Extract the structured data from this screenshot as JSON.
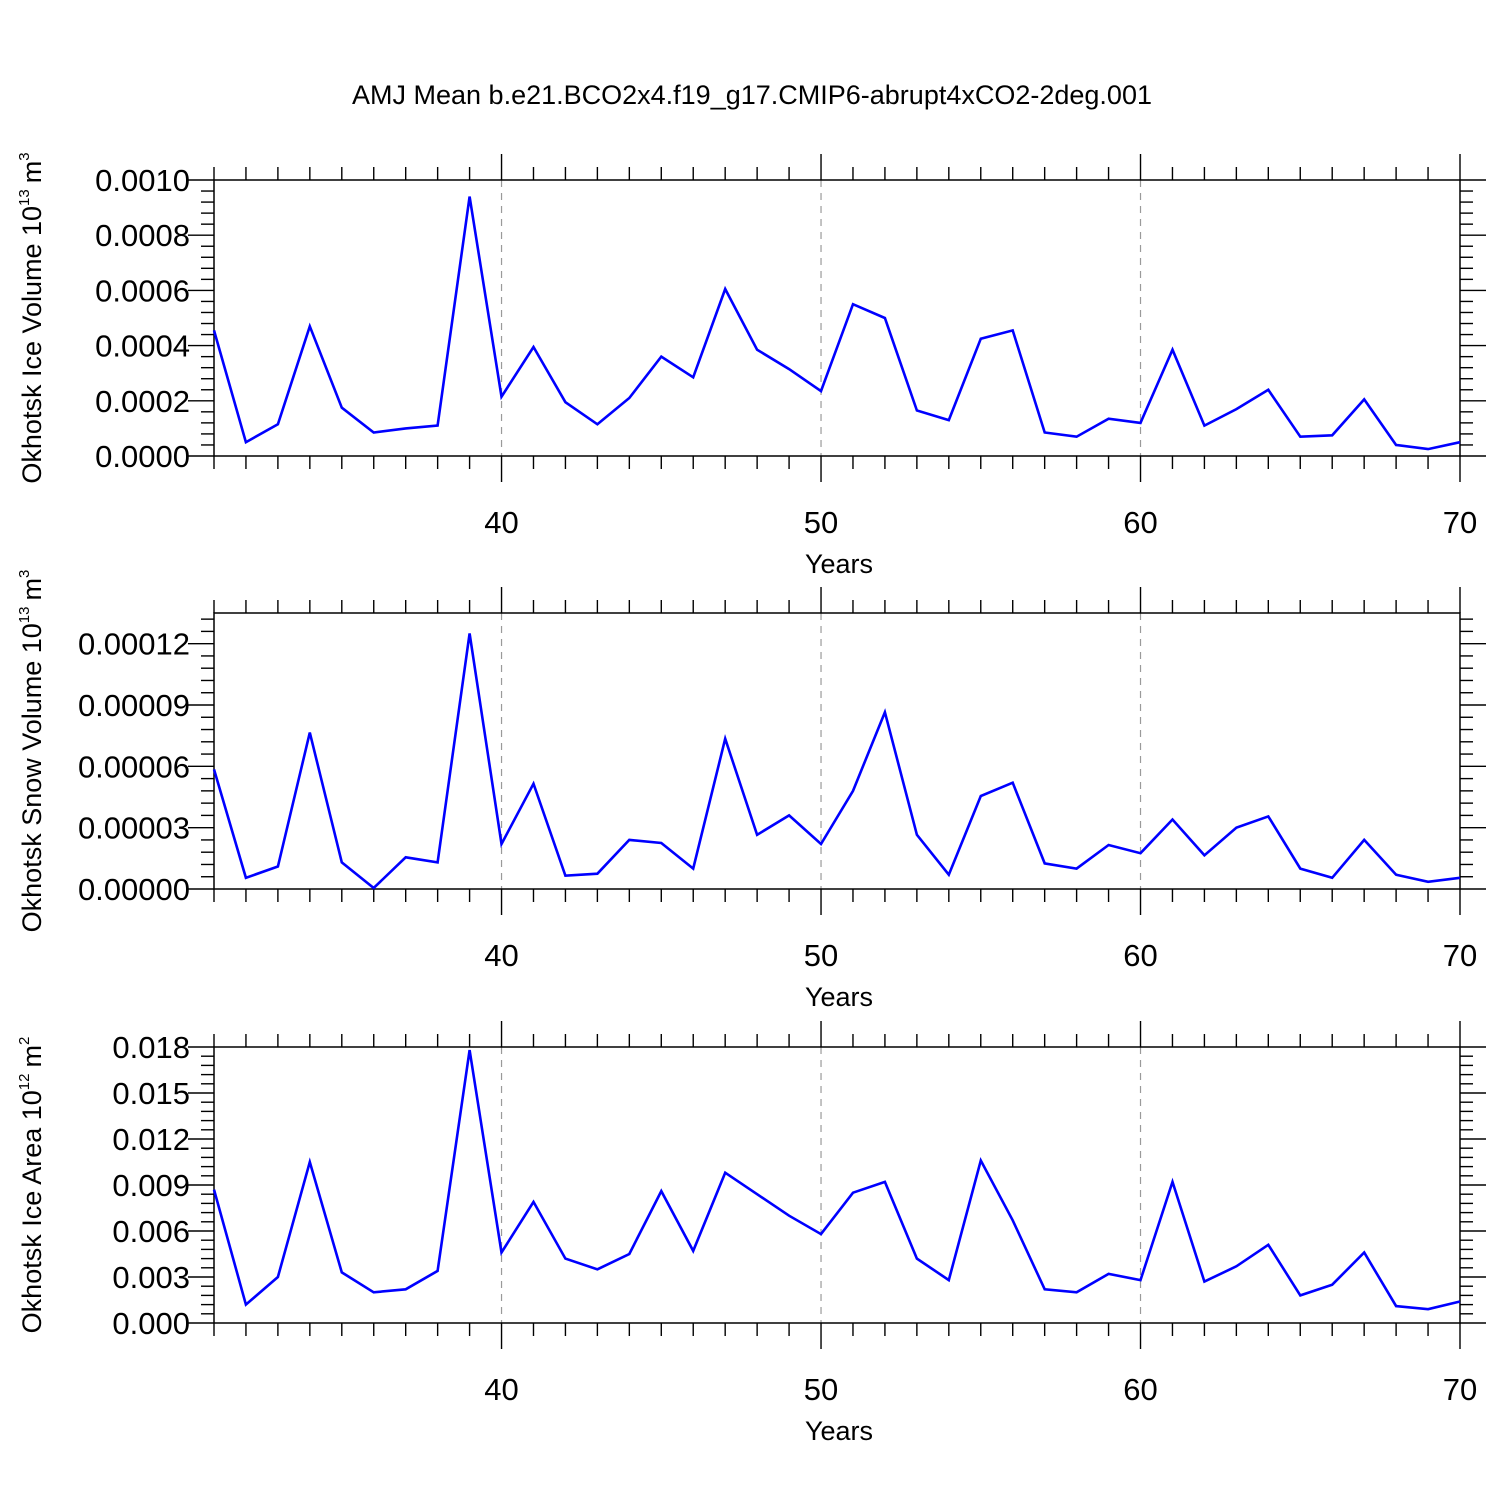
{
  "title": "AMJ Mean b.e21.BCO2x4.f19_g17.CMIP6-abrupt4xCO2-2deg.001",
  "colors": {
    "line": "#0000ff",
    "axis": "#000000",
    "grid": "#9a9a9a"
  },
  "chart_data": [
    {
      "type": "line",
      "xlabel": "Years",
      "ylabel": {
        "text": "Okhotsk Ice Volume 10",
        "exp": "13",
        "unit": "m",
        "unit_exp": "3"
      },
      "xlim": [
        31,
        70
      ],
      "ylim": [
        0,
        0.001
      ],
      "xticks": [
        40,
        50,
        60,
        70
      ],
      "yticks": [
        0,
        0.0002,
        0.0004,
        0.0006,
        0.0008,
        0.001
      ],
      "ytick_labels": [
        "0.0000",
        "0.0002",
        "0.0004",
        "0.0006",
        "0.0008",
        "0.0010"
      ],
      "x": [
        31,
        32,
        33,
        34,
        35,
        36,
        37,
        38,
        39,
        40,
        41,
        42,
        43,
        44,
        45,
        46,
        47,
        48,
        49,
        50,
        51,
        52,
        53,
        54,
        55,
        56,
        57,
        58,
        59,
        60,
        61,
        62,
        63,
        64,
        65,
        66,
        67,
        68,
        69,
        70
      ],
      "y": [
        0.000455,
        5e-05,
        0.000115,
        0.00047,
        0.000175,
        8.5e-05,
        0.0001,
        0.00011,
        0.00094,
        0.000215,
        0.000395,
        0.000195,
        0.000115,
        0.00021,
        0.00036,
        0.000285,
        0.000605,
        0.000385,
        0.000315,
        0.000235,
        0.00055,
        0.0005,
        0.000165,
        0.00013,
        0.000425,
        0.000455,
        8.5e-05,
        7e-05,
        0.000135,
        0.00012,
        0.000385,
        0.00011,
        0.00017,
        0.00024,
        7e-05,
        7.5e-05,
        0.000205,
        4e-05,
        2.5e-05,
        5e-05
      ]
    },
    {
      "type": "line",
      "xlabel": "Years",
      "ylabel": {
        "text": "Okhotsk Snow Volume 10",
        "exp": "13",
        "unit": "m",
        "unit_exp": "3"
      },
      "xlim": [
        31,
        70
      ],
      "ylim": [
        0,
        0.000135
      ],
      "xticks": [
        40,
        50,
        60,
        70
      ],
      "yticks": [
        0,
        3e-05,
        6e-05,
        9e-05,
        0.00012
      ],
      "ytick_labels": [
        "0.00000",
        "0.00003",
        "0.00006",
        "0.00009",
        "0.00012"
      ],
      "x": [
        31,
        32,
        33,
        34,
        35,
        36,
        37,
        38,
        39,
        40,
        41,
        42,
        43,
        44,
        45,
        46,
        47,
        48,
        49,
        50,
        51,
        52,
        53,
        54,
        55,
        56,
        57,
        58,
        59,
        60,
        61,
        62,
        63,
        64,
        65,
        66,
        67,
        68,
        69,
        70
      ],
      "y": [
        5.85e-05,
        5.5e-06,
        1.1e-05,
        7.65e-05,
        1.3e-05,
        5e-07,
        1.55e-05,
        1.3e-05,
        0.000125,
        2.2e-05,
        5.15e-05,
        6.5e-06,
        7.5e-06,
        2.4e-05,
        2.25e-05,
        1e-05,
        7.35e-05,
        2.65e-05,
        3.6e-05,
        2.2e-05,
        4.8e-05,
        8.65e-05,
        2.65e-05,
        7e-06,
        4.55e-05,
        5.2e-05,
        1.25e-05,
        1e-05,
        2.15e-05,
        1.75e-05,
        3.4e-05,
        1.65e-05,
        3e-05,
        3.55e-05,
        1e-05,
        5.5e-06,
        2.4e-05,
        7e-06,
        3.5e-06,
        5.5e-06
      ]
    },
    {
      "type": "line",
      "xlabel": "Years",
      "ylabel": {
        "text": "Okhotsk Ice Area 10",
        "exp": "12",
        "unit": "m",
        "unit_exp": "2"
      },
      "xlim": [
        31,
        70
      ],
      "ylim": [
        0,
        0.018
      ],
      "xticks": [
        40,
        50,
        60,
        70
      ],
      "yticks": [
        0,
        0.003,
        0.006,
        0.009,
        0.012,
        0.015,
        0.018
      ],
      "ytick_labels": [
        "0.000",
        "0.003",
        "0.006",
        "0.009",
        "0.012",
        "0.015",
        "0.018"
      ],
      "x": [
        31,
        32,
        33,
        34,
        35,
        36,
        37,
        38,
        39,
        40,
        41,
        42,
        43,
        44,
        45,
        46,
        47,
        48,
        49,
        50,
        51,
        52,
        53,
        54,
        55,
        56,
        57,
        58,
        59,
        60,
        61,
        62,
        63,
        64,
        65,
        66,
        67,
        68,
        69,
        70
      ],
      "y": [
        0.0087,
        0.0012,
        0.003,
        0.0105,
        0.0033,
        0.002,
        0.0022,
        0.0034,
        0.0178,
        0.0046,
        0.0079,
        0.0042,
        0.0035,
        0.0045,
        0.0086,
        0.0047,
        0.0098,
        0.0084,
        0.007,
        0.0058,
        0.0085,
        0.0092,
        0.0042,
        0.0028,
        0.0106,
        0.0067,
        0.0022,
        0.002,
        0.0032,
        0.0028,
        0.0092,
        0.0027,
        0.0037,
        0.0051,
        0.0018,
        0.0025,
        0.0046,
        0.0011,
        0.0009,
        0.0014
      ]
    }
  ]
}
